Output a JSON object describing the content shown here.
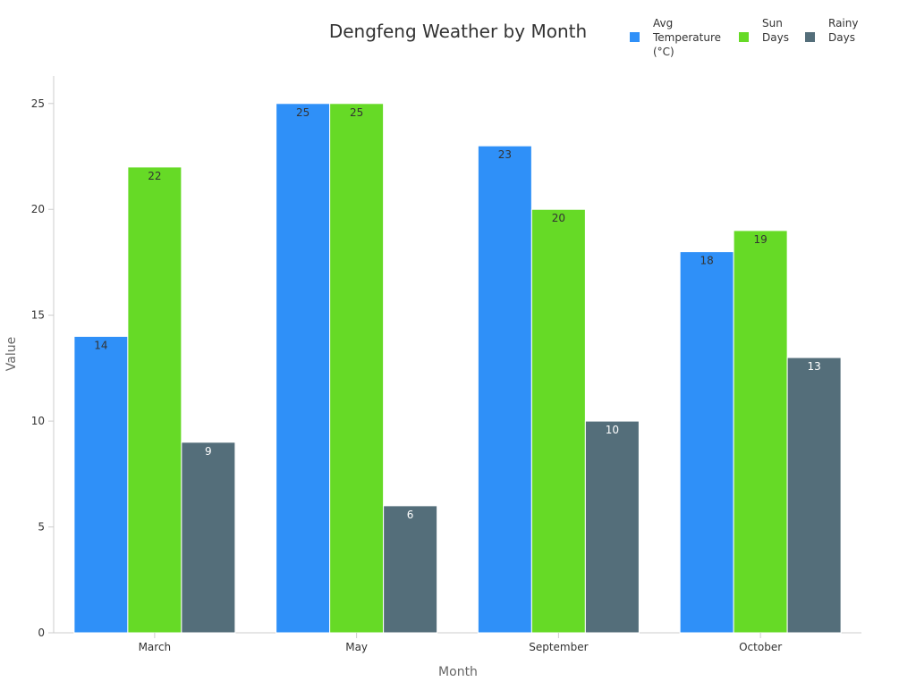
{
  "chart_data": {
    "type": "bar",
    "title": "Dengfeng Weather by Month",
    "xlabel": "Month",
    "ylabel": "Value",
    "categories": [
      "March",
      "May",
      "September",
      "October"
    ],
    "series": [
      {
        "name": "Avg Temperature (°C)",
        "legend_lines": [
          "Avg",
          "Temperature",
          "(°C)"
        ],
        "values": [
          14,
          25,
          23,
          18
        ],
        "color": "#2f90f8",
        "label_color": "#333333"
      },
      {
        "name": "Sun Days",
        "legend_lines": [
          "Sun",
          "Days"
        ],
        "values": [
          22,
          25,
          20,
          19
        ],
        "color": "#66da26",
        "label_color": "#333333"
      },
      {
        "name": "Rainy Days",
        "legend_lines": [
          "Rainy",
          "Days"
        ],
        "values": [
          9,
          6,
          10,
          13
        ],
        "color": "#546e7a",
        "label_color": "#ffffff"
      }
    ],
    "ylim": [
      0,
      26.3
    ],
    "yticks": [
      0,
      5,
      10,
      15,
      20,
      25
    ],
    "grid": false,
    "legend_position": "top-right"
  }
}
